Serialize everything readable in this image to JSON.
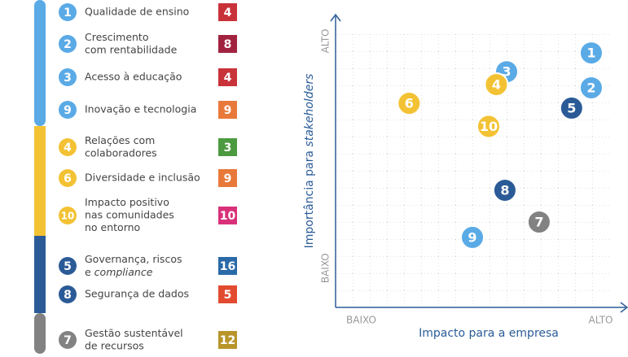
{
  "chart_data": {
    "type": "scatter",
    "x_label": "Impacto para a empresa",
    "y_label": [
      "Importância para ",
      {
        "text": "stakeholders",
        "italic": true
      }
    ],
    "xlim": [
      0,
      16
    ],
    "ylim": [
      0,
      16
    ],
    "xticks": [
      {
        "value": 1.5,
        "label": "BAIXO"
      },
      {
        "value": 15.5,
        "label": "ALTO"
      }
    ],
    "yticks": [
      {
        "value": 2.3,
        "label": "BAIXO"
      },
      {
        "value": 15.6,
        "label": "ALTO"
      }
    ],
    "grid": true,
    "point_labels": [
      "1",
      "2",
      "3",
      "4",
      "5",
      "6",
      "10",
      "8",
      "7",
      "9"
    ],
    "x": [
      14.95,
      14.95,
      10,
      9.4,
      13.8,
      4.3,
      8.95,
      9.9,
      11.9,
      8
    ],
    "values": [
      14.9,
      12.86,
      13.8,
      13.05,
      11.67,
      11.95,
      10.6,
      6.86,
      5,
      4.1
    ],
    "colors": [
      "#5aaae6",
      "#5aaae6",
      "#5aaae6",
      "#f3c234",
      "#2b5b97",
      "#f3c234",
      "#f3c234",
      "#2b5b97",
      "#828282",
      "#5aaae6"
    ]
  },
  "list": {
    "groups": [
      {
        "color": "#5aaae6",
        "items": [
          {
            "number": "1",
            "lines": [
              "Qualidade de ensino"
            ],
            "score": 4,
            "score_color": "#c8333a"
          },
          {
            "number": "2",
            "lines": [
              "Crescimento",
              "com rentabilidade"
            ],
            "score": 8,
            "score_color": "#a1233f"
          },
          {
            "number": "3",
            "lines": [
              "Acesso à educação"
            ],
            "score": 4,
            "score_color": "#c8333a"
          },
          {
            "number": "9",
            "lines": [
              "Inovação e tecnologia"
            ],
            "score": 9,
            "score_color": "#e8793a"
          }
        ]
      },
      {
        "color": "#f3c234",
        "items": [
          {
            "number": "4",
            "lines": [
              "Relações com",
              "colaboradores"
            ],
            "score": 3,
            "score_color": "#4c9a3f"
          },
          {
            "number": "6",
            "lines": [
              "Diversidade e inclusão"
            ],
            "score": 9,
            "score_color": "#e8793a"
          },
          {
            "number": "10",
            "lines": [
              "Impacto positivo",
              "nas comunidades",
              "no entorno"
            ],
            "score": 10,
            "score_color": "#d9307a"
          }
        ]
      },
      {
        "color": "#2b5b97",
        "items": [
          {
            "number": "5",
            "lines": [
              "Governança, riscos",
              [
                "e ",
                {
                  "text": "compliance",
                  "italic": true
                }
              ]
            ],
            "score": 16,
            "score_color": "#2a6aa8"
          },
          {
            "number": "8",
            "lines": [
              "Segurança de dados"
            ],
            "score": 5,
            "score_color": "#e24b30"
          }
        ]
      },
      {
        "color": "#828282",
        "items": [
          {
            "number": "7",
            "lines": [
              "Gestão sustentável",
              "de recursos"
            ],
            "score": 12,
            "score_color": "#b8952a"
          }
        ]
      }
    ]
  }
}
